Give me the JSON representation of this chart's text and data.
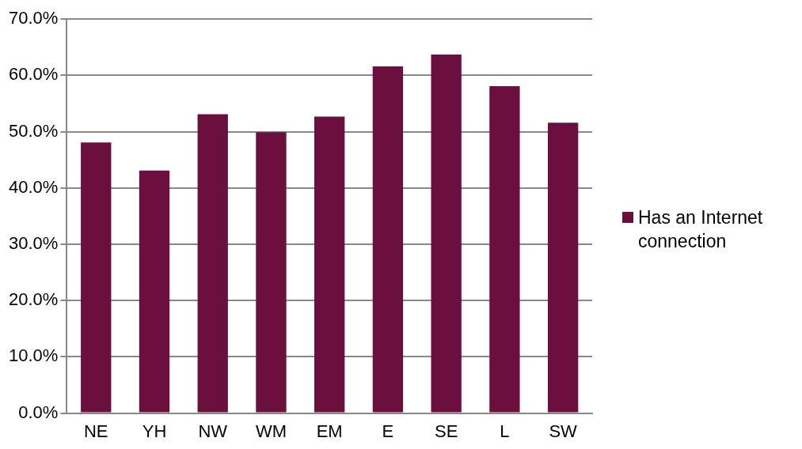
{
  "chart_data": {
    "type": "bar",
    "categories": [
      "NE",
      "YH",
      "NW",
      "WM",
      "EM",
      "E",
      "SE",
      "L",
      "SW"
    ],
    "series": [
      {
        "name": "Has an Internet connection",
        "color": "#6b0f3e",
        "values": [
          48.1,
          43.1,
          53.1,
          49.9,
          52.7,
          61.6,
          63.7,
          58.1,
          51.6
        ]
      }
    ],
    "ylim": [
      0,
      70
    ],
    "yticks": [
      {
        "value": 0,
        "label": "0.0%"
      },
      {
        "value": 10,
        "label": "10.0%"
      },
      {
        "value": 20,
        "label": "20.0%"
      },
      {
        "value": 30,
        "label": "30.0%"
      },
      {
        "value": 40,
        "label": "40.0%"
      },
      {
        "value": 50,
        "label": "50.0%"
      },
      {
        "value": 60,
        "label": "60.0%"
      },
      {
        "value": 70,
        "label": "70.0%"
      }
    ],
    "grid": "y",
    "legend": "right"
  }
}
